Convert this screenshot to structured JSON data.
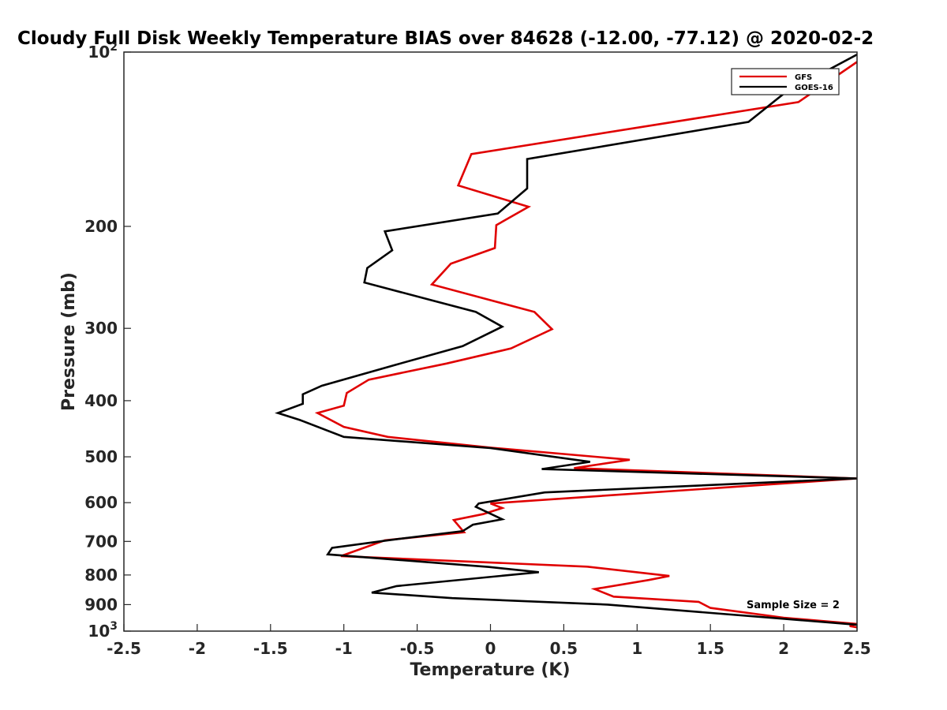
{
  "chart_data": {
    "type": "line",
    "title": "Cloudy Full Disk Weekly Temperature BIAS over 84628 (-12.00, -77.12) @ 2020-02-2",
    "xlabel": "Temperature (K)",
    "ylabel": "Pressure (mb)",
    "xlim": [
      -2.5,
      2.5
    ],
    "ylim": [
      1000,
      100
    ],
    "y_scale": "log",
    "y_reversed": true,
    "grid": false,
    "legend_position": "top-right",
    "annotation": "Sample Size = 2",
    "x_ticks": [
      {
        "value": -2.5,
        "label": "-2.5"
      },
      {
        "value": -2,
        "label": "-2"
      },
      {
        "value": -1.5,
        "label": "-1.5"
      },
      {
        "value": -1,
        "label": "-1"
      },
      {
        "value": -0.5,
        "label": "-0.5"
      },
      {
        "value": 0,
        "label": "0"
      },
      {
        "value": 0.5,
        "label": "0.5"
      },
      {
        "value": 1,
        "label": "1"
      },
      {
        "value": 1.5,
        "label": "1.5"
      },
      {
        "value": 2,
        "label": "2"
      },
      {
        "value": 2.5,
        "label": "2.5"
      }
    ],
    "y_ticks": [
      {
        "value": 100,
        "base": "10",
        "exp": "2"
      },
      {
        "value": 200,
        "label": "200"
      },
      {
        "value": 300,
        "label": "300"
      },
      {
        "value": 400,
        "label": "400"
      },
      {
        "value": 500,
        "label": "500"
      },
      {
        "value": 600,
        "label": "600"
      },
      {
        "value": 700,
        "label": "700"
      },
      {
        "value": 800,
        "label": "800"
      },
      {
        "value": 900,
        "label": "900"
      },
      {
        "value": 1000,
        "base": "10",
        "exp": "3"
      }
    ],
    "series": [
      {
        "name": "GFS",
        "color": "#e00000",
        "points": [
          [
            2.5,
            104
          ],
          [
            2.1,
            122
          ],
          [
            -0.13,
            150
          ],
          [
            -0.22,
            170
          ],
          [
            0.26,
            185
          ],
          [
            0.04,
            199
          ],
          [
            0.03,
            218
          ],
          [
            -0.27,
            232
          ],
          [
            -0.4,
            252
          ],
          [
            0.3,
            281
          ],
          [
            0.42,
            301
          ],
          [
            0.14,
            325
          ],
          [
            -0.3,
            345
          ],
          [
            -0.83,
            368
          ],
          [
            -0.98,
            388
          ],
          [
            -1.0,
            408
          ],
          [
            -1.18,
            420
          ],
          [
            -1.0,
            444
          ],
          [
            -0.7,
            462
          ],
          [
            0.0,
            482
          ],
          [
            0.95,
            506
          ],
          [
            0.57,
            523
          ],
          [
            2.5,
            545
          ],
          [
            0.0,
            602
          ],
          [
            0.08,
            613
          ],
          [
            -0.05,
            628
          ],
          [
            -0.25,
            643
          ],
          [
            -0.18,
            675
          ],
          [
            -0.72,
            697
          ],
          [
            -1.02,
            742
          ],
          [
            0.66,
            774
          ],
          [
            1.22,
            803
          ],
          [
            1.08,
            816
          ],
          [
            0.71,
            846
          ],
          [
            0.84,
            872
          ],
          [
            1.42,
            890
          ],
          [
            1.5,
            912
          ],
          [
            2.0,
            948
          ],
          [
            2.5,
            972
          ],
          [
            2.45,
            980
          ],
          [
            2.5,
            985
          ]
        ]
      },
      {
        "name": "GOES-16",
        "color": "#000000",
        "points": [
          [
            2.5,
            101
          ],
          [
            2.0,
            118
          ],
          [
            1.76,
            132
          ],
          [
            0.25,
            153
          ],
          [
            0.25,
            172
          ],
          [
            0.05,
            190
          ],
          [
            -0.72,
            204
          ],
          [
            -0.67,
            220
          ],
          [
            -0.84,
            236
          ],
          [
            -0.86,
            250
          ],
          [
            -0.1,
            281
          ],
          [
            0.08,
            298
          ],
          [
            -0.19,
            322
          ],
          [
            -0.65,
            347
          ],
          [
            -1.15,
            377
          ],
          [
            -1.28,
            390
          ],
          [
            -1.28,
            405
          ],
          [
            -1.45,
            420
          ],
          [
            -1.3,
            432
          ],
          [
            -1.0,
            462
          ],
          [
            0.0,
            483
          ],
          [
            0.68,
            510
          ],
          [
            0.35,
            525
          ],
          [
            2.5,
            545
          ],
          [
            0.37,
            576
          ],
          [
            -0.08,
            602
          ],
          [
            -0.1,
            610
          ],
          [
            0.08,
            641
          ],
          [
            -0.12,
            655
          ],
          [
            -0.19,
            672
          ],
          [
            -0.7,
            697
          ],
          [
            -1.08,
            718
          ],
          [
            -1.11,
            737
          ],
          [
            -0.01,
            775
          ],
          [
            0.33,
            791
          ],
          [
            -0.64,
            836
          ],
          [
            -0.81,
            858
          ],
          [
            -0.26,
            877
          ],
          [
            0.8,
            900
          ],
          [
            2.5,
            975
          ]
        ]
      }
    ]
  }
}
